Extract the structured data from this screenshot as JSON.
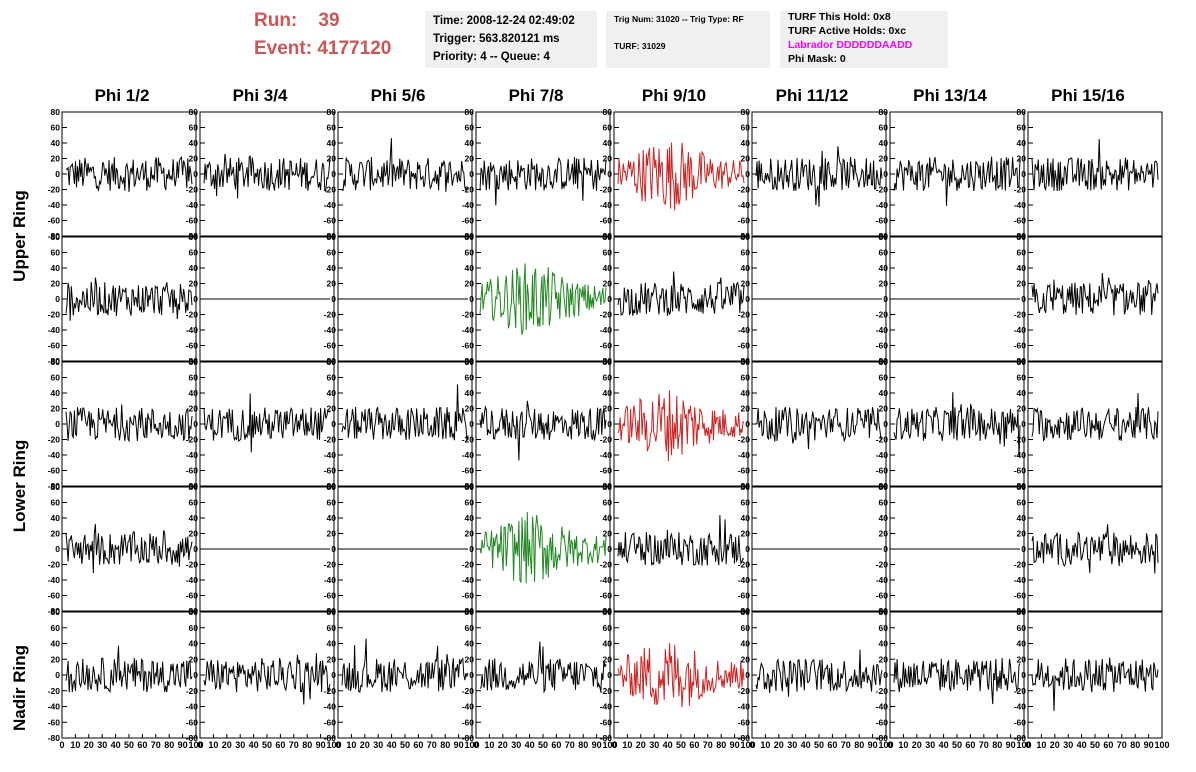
{
  "header": {
    "run_label": "Run:",
    "run_value": "39",
    "event_label": "Event:",
    "event_value": "4177120",
    "box1": [
      "Time: 2008-12-24 02:49:02",
      "Trigger: 563.820121 ms",
      "Priority: 4 -- Queue: 4"
    ],
    "box2": [
      "Trig Num: 31020 -- Trig Type: RF",
      "TURF: 31029"
    ],
    "box3": [
      "TURF This Hold: 0x8",
      "TURF Active Holds: 0xc",
      "Labrador DDDDDDAADD",
      "Phi Mask: 0"
    ]
  },
  "colors": {
    "header_red": "#cc5555",
    "magenta": "#ff00ff",
    "trace_black": "#000000",
    "trace_red": "#cc2222",
    "trace_green": "#228822",
    "panel_bg": "#f0f0f0"
  },
  "columns": [
    "Phi 1/2",
    "Phi 3/4",
    "Phi 5/6",
    "Phi 7/8",
    "Phi 9/10",
    "Phi 11/12",
    "Phi 13/14",
    "Phi 15/16"
  ],
  "row_labels": [
    "Upper Ring",
    "Lower Ring",
    "Nadir Ring"
  ],
  "chart_data": {
    "type": "line",
    "ylim": [
      -80,
      80
    ],
    "xlim": [
      0,
      100
    ],
    "y_ticks": [
      "80",
      "60",
      "40",
      "20",
      "0",
      "-20",
      "-40",
      "-60",
      "-80"
    ],
    "x_ticks": [
      "0",
      "10",
      "20",
      "30",
      "40",
      "50",
      "60",
      "70",
      "80",
      "90",
      "100"
    ],
    "rows": [
      [
        "noise",
        "noise",
        "noise",
        "noise",
        "signal-red",
        "noise",
        "noise",
        "noise"
      ],
      [
        "noise",
        "flat",
        "flat",
        "signal-green",
        "noise",
        "flat",
        "flat",
        "noise"
      ],
      [
        "noise",
        "noise",
        "noise",
        "noise",
        "signal-red",
        "noise",
        "noise",
        "noise"
      ],
      [
        "noise",
        "flat",
        "flat",
        "signal-green",
        "noise",
        "flat",
        "flat",
        "noise"
      ],
      [
        "noise",
        "noise",
        "noise",
        "noise",
        "signal-red",
        "noise",
        "noise",
        "noise"
      ]
    ]
  }
}
